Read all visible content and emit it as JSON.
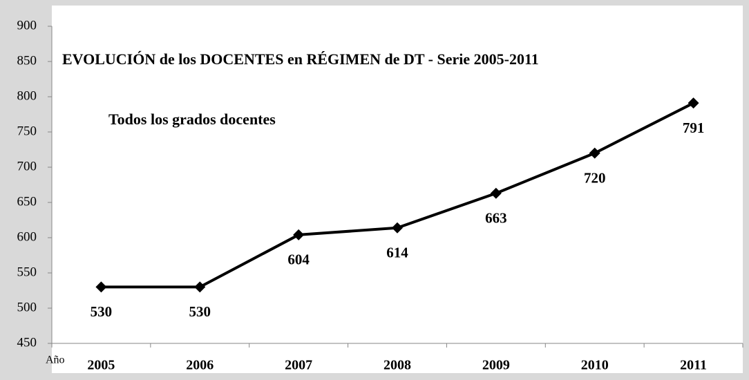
{
  "chart_data": {
    "type": "line",
    "title": "EVOLUCIÓN de los DOCENTES en RÉGIMEN de DT - Serie 2005-2011",
    "subtitle": "Todos los grados docentes",
    "x_label": "Año",
    "categories": [
      "2005",
      "2006",
      "2007",
      "2008",
      "2009",
      "2010",
      "2011"
    ],
    "series": [
      {
        "name": null,
        "color": "#000000",
        "values": [
          530,
          530,
          604,
          614,
          663,
          720,
          791
        ]
      }
    ],
    "ylim": [
      450,
      900
    ],
    "yticks": [
      450,
      500,
      550,
      600,
      650,
      700,
      750,
      800,
      850,
      900
    ],
    "marker": "diamond",
    "data_labels": true
  }
}
